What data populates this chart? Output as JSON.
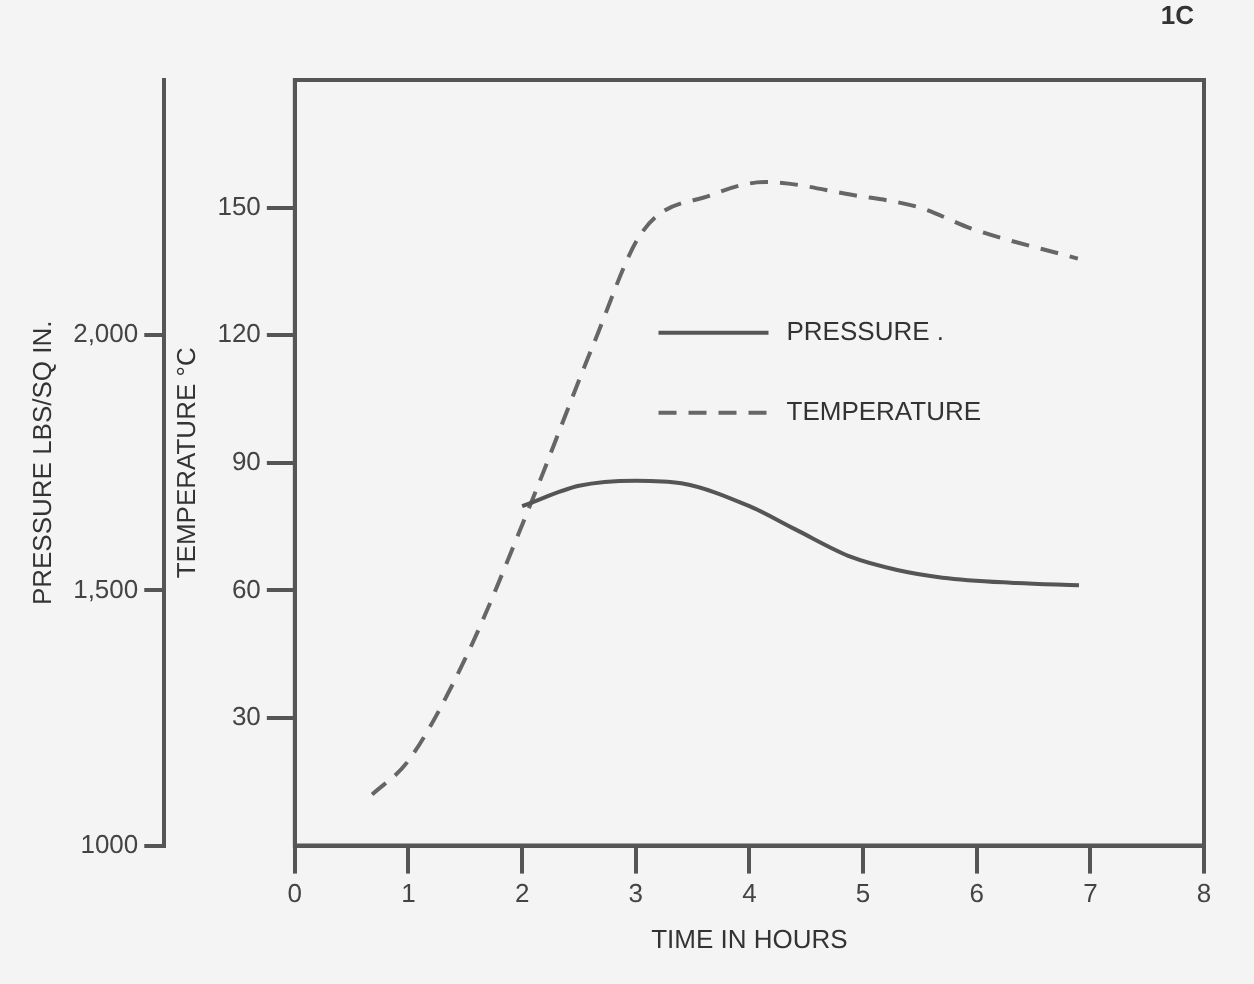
{
  "chart_data": {
    "type": "line",
    "xlabel": "TIME IN HOURS",
    "ylabel": "TEMPERATURE °C",
    "y2label": "PRESSURE LBS/SQ IN.",
    "xlim": [
      0,
      8
    ],
    "xticks": [
      0,
      1,
      2,
      3,
      4,
      5,
      6,
      7,
      8
    ],
    "ylim": [
      0,
      180
    ],
    "yticks": [
      30,
      60,
      90,
      120,
      150
    ],
    "y2lim": [
      1000,
      2500
    ],
    "y2ticks": [
      {
        "value": 1000,
        "label": "1000"
      },
      {
        "value": 1500,
        "label": "1,500"
      },
      {
        "value": 2000,
        "label": "2,000"
      }
    ],
    "series": [
      {
        "name": "PRESSURE .",
        "color": "#555555",
        "axis": "y2",
        "line_style": "solid",
        "x": [
          2.0,
          2.5,
          3.0,
          3.4,
          4.0,
          4.4,
          4.9,
          5.3,
          5.7,
          6.3,
          6.9
        ],
        "values": [
          1665,
          1705,
          1715,
          1710,
          1665,
          1620,
          1565,
          1540,
          1525,
          1515,
          1510
        ]
      },
      {
        "name": "TEMPERATURE",
        "color": "#666666",
        "line_style": "dashed",
        "x": [
          0.68,
          1.0,
          1.5,
          2.07,
          2.63,
          3.05,
          3.67,
          4.14,
          4.9,
          5.5,
          5.96,
          6.89
        ],
        "values": [
          12,
          20,
          44,
          80,
          118,
          144,
          153,
          156,
          153,
          150,
          145,
          138
        ]
      }
    ],
    "legend": "top right",
    "grid": false,
    "marker": "none",
    "annotations": [
      "1C"
    ]
  }
}
